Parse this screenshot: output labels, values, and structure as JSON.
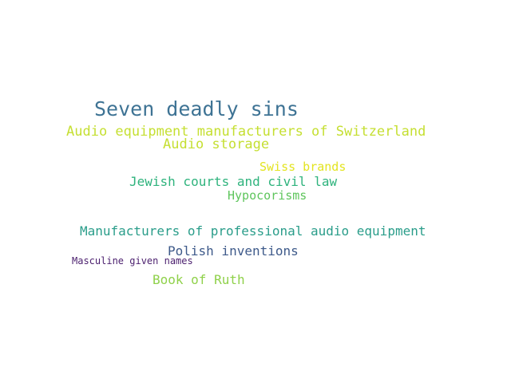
{
  "word_cloud": {
    "words": [
      {
        "text": "Seven deadly sins",
        "color": "#3e7394"
      },
      {
        "text": "Audio equipment manufacturers of Switzerland",
        "color": "#c5df31"
      },
      {
        "text": "Audio storage",
        "color": "#c5df31"
      },
      {
        "text": "Swiss brands",
        "color": "#e3e420"
      },
      {
        "text": "Jewish courts and civil law",
        "color": "#2fb37d"
      },
      {
        "text": "Hypocorisms",
        "color": "#5ec55c"
      },
      {
        "text": "Manufacturers of professional audio equipment",
        "color": "#2a9d8a"
      },
      {
        "text": "Polish inventions",
        "color": "#3e5a8a"
      },
      {
        "text": "Masculine given names",
        "color": "#4b1f6e"
      },
      {
        "text": "Book of Ruth",
        "color": "#8fd14a"
      }
    ]
  }
}
